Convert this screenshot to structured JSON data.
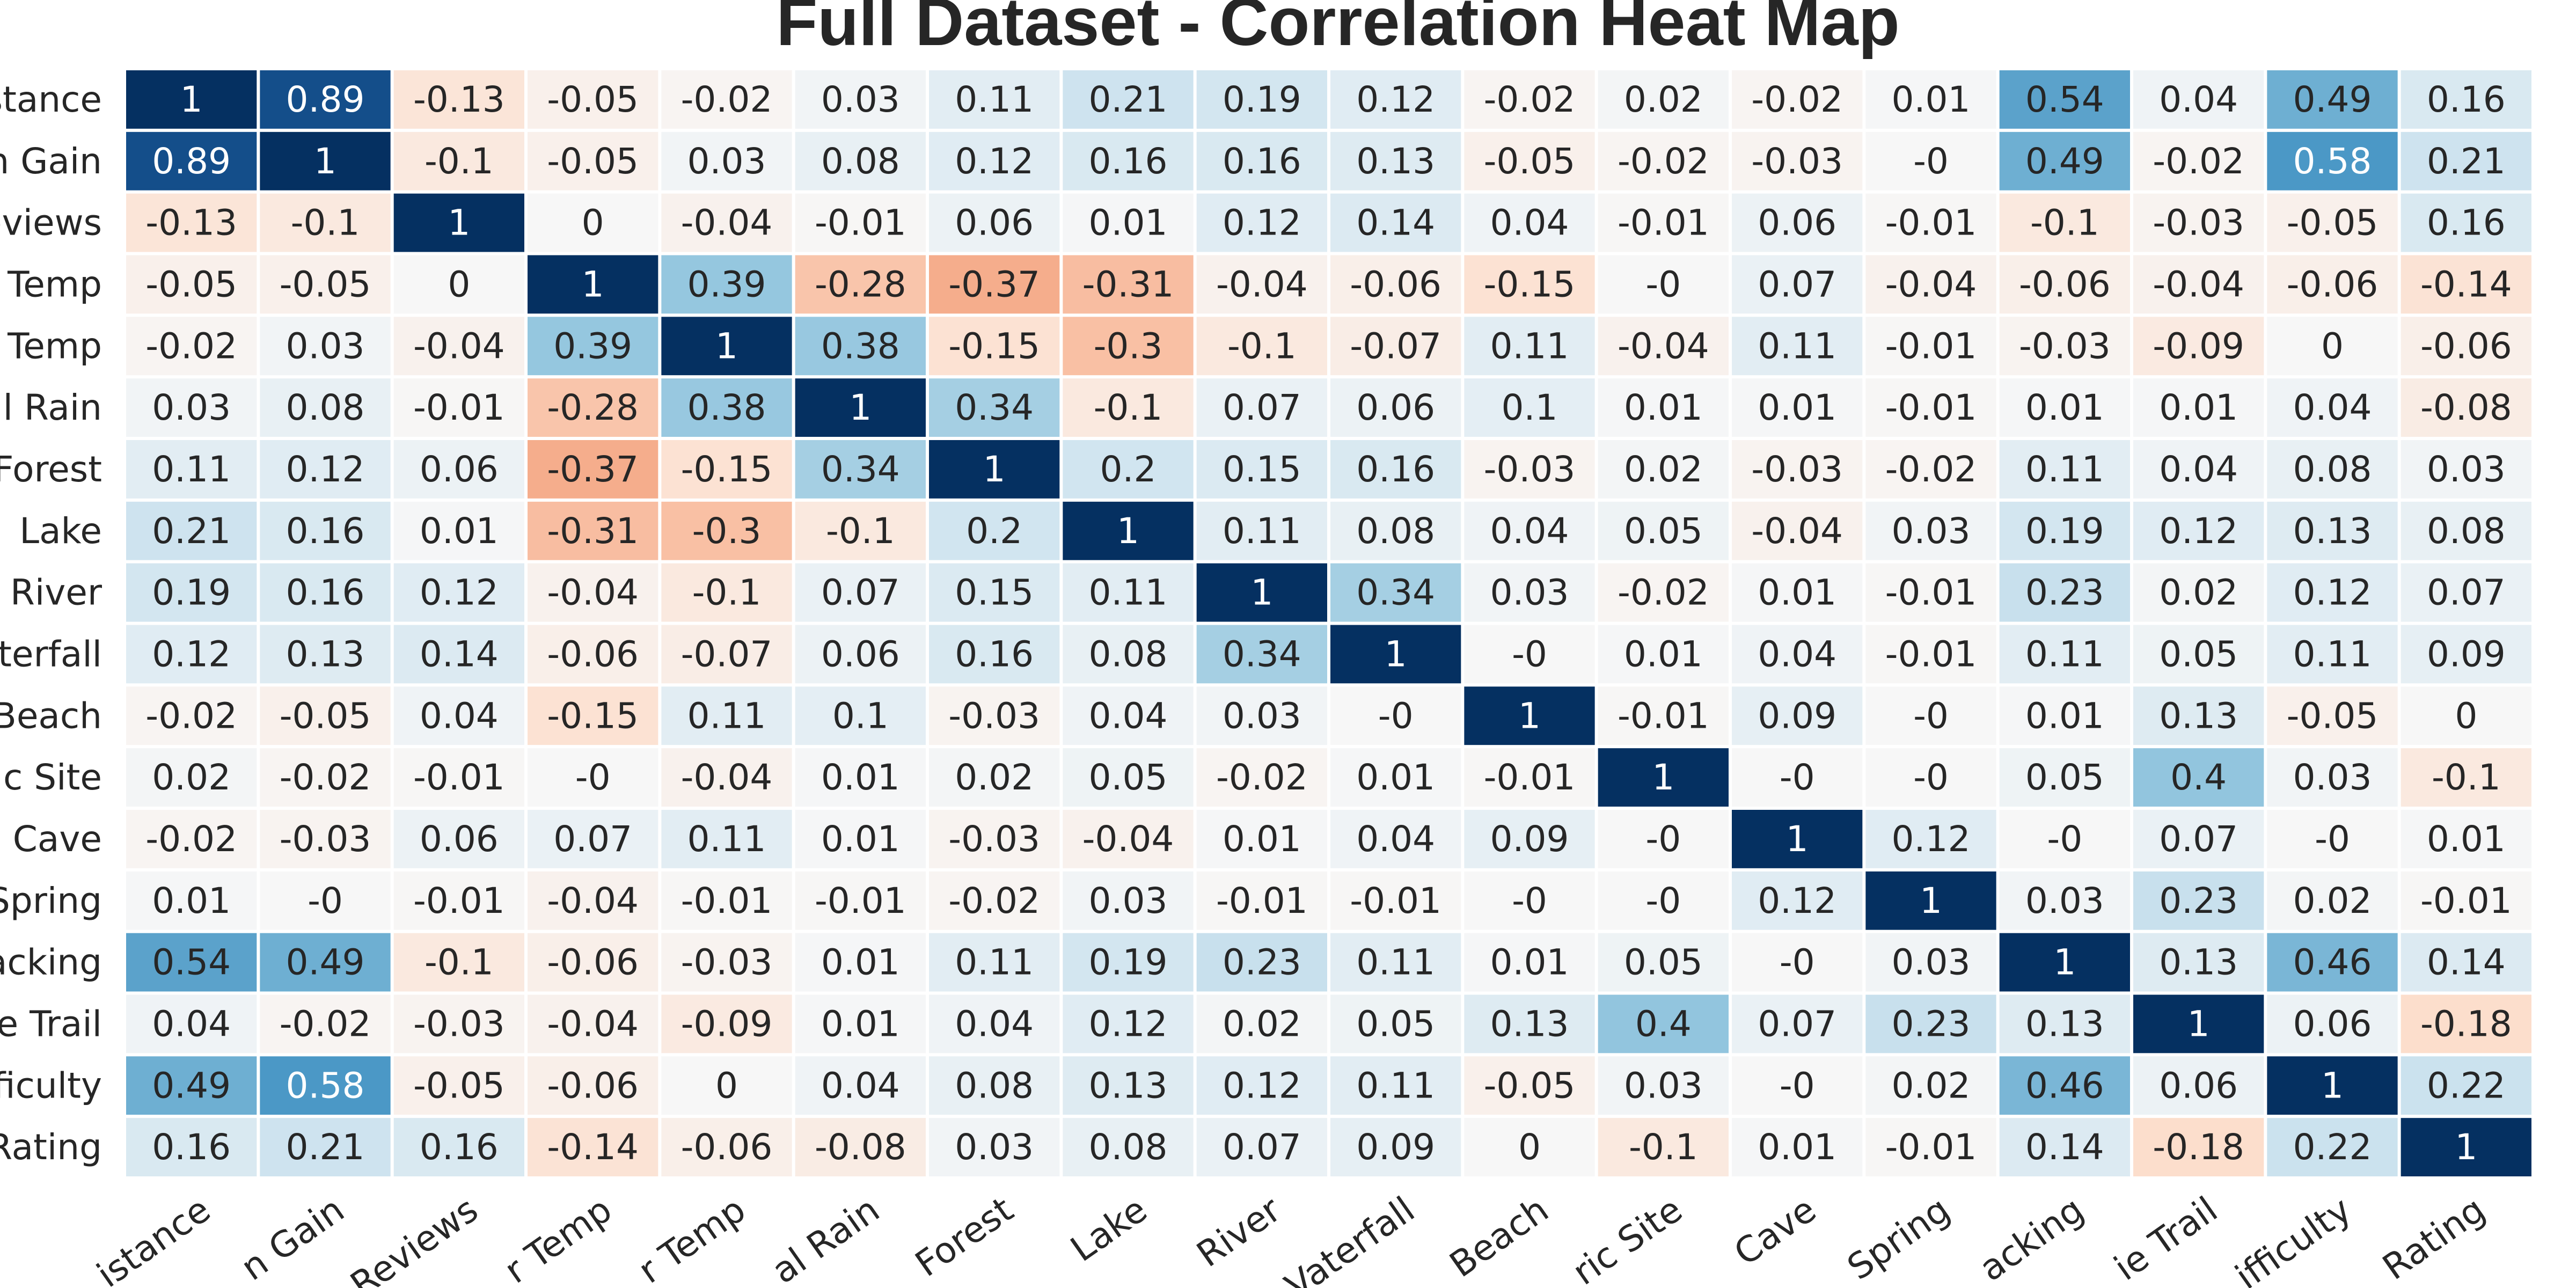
{
  "chart_data": {
    "type": "heatmap",
    "title": "Full Dataset - Correlation Heat Map",
    "xlabel": "",
    "ylabel": "",
    "color_scale": {
      "min": -1,
      "max": 1,
      "colormap": "RdBu",
      "negative": "#b2182b",
      "neutral": "#f7f7f7",
      "positive": "#053061"
    },
    "legend": "none",
    "y_tick_labels": [
      "stance",
      "n Gain",
      "eviews",
      "Temp",
      "Temp",
      "al Rain",
      "Forest",
      "Lake",
      "River",
      "aterfall",
      "Beach",
      "ic Site",
      "Cave",
      "Spring",
      "acking",
      "e Trail",
      "fficulty",
      "Rating"
    ],
    "x_tick_labels": [
      "istance",
      "n Gain",
      "Reviews",
      "r Temp",
      "r Temp",
      "al Rain",
      "Forest",
      "Lake",
      "River",
      "Vaterfall",
      "Beach",
      "ric Site",
      "Cave",
      "Spring",
      "acking",
      "ie Trail",
      "ifficulty",
      "Rating"
    ],
    "matrix": [
      [
        1,
        0.89,
        -0.13,
        -0.05,
        -0.02,
        0.03,
        0.11,
        0.21,
        0.19,
        0.12,
        -0.02,
        0.02,
        -0.02,
        0.01,
        0.54,
        0.04,
        0.49,
        0.16
      ],
      [
        0.89,
        1,
        -0.1,
        -0.05,
        0.03,
        0.08,
        0.12,
        0.16,
        0.16,
        0.13,
        -0.05,
        -0.02,
        -0.03,
        "-0",
        0.49,
        -0.02,
        0.58,
        0.21
      ],
      [
        -0.13,
        -0.1,
        1,
        0,
        -0.04,
        -0.01,
        0.06,
        0.01,
        0.12,
        0.14,
        0.04,
        -0.01,
        0.06,
        -0.01,
        -0.1,
        -0.03,
        -0.05,
        0.16
      ],
      [
        -0.05,
        -0.05,
        0,
        1,
        0.39,
        -0.28,
        -0.37,
        -0.31,
        -0.04,
        -0.06,
        -0.15,
        "-0",
        0.07,
        -0.04,
        -0.06,
        -0.04,
        -0.06,
        -0.14
      ],
      [
        -0.02,
        0.03,
        -0.04,
        0.39,
        1,
        0.38,
        -0.15,
        -0.3,
        -0.1,
        -0.07,
        0.11,
        -0.04,
        0.11,
        -0.01,
        -0.03,
        -0.09,
        0,
        -0.06
      ],
      [
        0.03,
        0.08,
        -0.01,
        -0.28,
        0.38,
        1,
        0.34,
        -0.1,
        0.07,
        0.06,
        0.1,
        0.01,
        0.01,
        -0.01,
        0.01,
        0.01,
        0.04,
        -0.08
      ],
      [
        0.11,
        0.12,
        0.06,
        -0.37,
        -0.15,
        0.34,
        1,
        0.2,
        0.15,
        0.16,
        -0.03,
        0.02,
        -0.03,
        -0.02,
        0.11,
        0.04,
        0.08,
        0.03
      ],
      [
        0.21,
        0.16,
        0.01,
        -0.31,
        -0.3,
        -0.1,
        0.2,
        1,
        0.11,
        0.08,
        0.04,
        0.05,
        -0.04,
        0.03,
        0.19,
        0.12,
        0.13,
        0.08
      ],
      [
        0.19,
        0.16,
        0.12,
        -0.04,
        -0.1,
        0.07,
        0.15,
        0.11,
        1,
        0.34,
        0.03,
        -0.02,
        0.01,
        -0.01,
        0.23,
        0.02,
        0.12,
        0.07
      ],
      [
        0.12,
        0.13,
        0.14,
        -0.06,
        -0.07,
        0.06,
        0.16,
        0.08,
        0.34,
        1,
        "-0",
        0.01,
        0.04,
        -0.01,
        0.11,
        0.05,
        0.11,
        0.09
      ],
      [
        -0.02,
        -0.05,
        0.04,
        -0.15,
        0.11,
        0.1,
        -0.03,
        0.04,
        0.03,
        "-0",
        1,
        -0.01,
        0.09,
        "-0",
        0.01,
        0.13,
        -0.05,
        0
      ],
      [
        0.02,
        -0.02,
        -0.01,
        "-0",
        -0.04,
        0.01,
        0.02,
        0.05,
        -0.02,
        0.01,
        -0.01,
        1,
        "-0",
        "-0",
        0.05,
        0.4,
        0.03,
        -0.1
      ],
      [
        -0.02,
        -0.03,
        0.06,
        0.07,
        0.11,
        0.01,
        -0.03,
        -0.04,
        0.01,
        0.04,
        0.09,
        "-0",
        1,
        0.12,
        "-0",
        0.07,
        "-0",
        0.01
      ],
      [
        0.01,
        "-0",
        -0.01,
        -0.04,
        -0.01,
        -0.01,
        -0.02,
        0.03,
        -0.01,
        -0.01,
        "-0",
        "-0",
        0.12,
        1,
        0.03,
        0.23,
        0.02,
        -0.01
      ],
      [
        0.54,
        0.49,
        -0.1,
        -0.06,
        -0.03,
        0.01,
        0.11,
        0.19,
        0.23,
        0.11,
        0.01,
        0.05,
        "-0",
        0.03,
        1,
        0.13,
        0.46,
        0.14
      ],
      [
        0.04,
        -0.02,
        -0.03,
        -0.04,
        -0.09,
        0.01,
        0.04,
        0.12,
        0.02,
        0.05,
        0.13,
        0.4,
        0.07,
        0.23,
        0.13,
        1,
        0.06,
        -0.18
      ],
      [
        0.49,
        0.58,
        -0.05,
        -0.06,
        0,
        0.04,
        0.08,
        0.13,
        0.12,
        0.11,
        -0.05,
        0.03,
        "-0",
        0.02,
        0.46,
        0.06,
        1,
        0.22
      ],
      [
        0.16,
        0.21,
        0.16,
        -0.14,
        -0.06,
        -0.08,
        0.03,
        0.08,
        0.07,
        0.09,
        0,
        -0.1,
        0.01,
        -0.01,
        0.14,
        -0.18,
        0.22,
        1
      ]
    ]
  }
}
